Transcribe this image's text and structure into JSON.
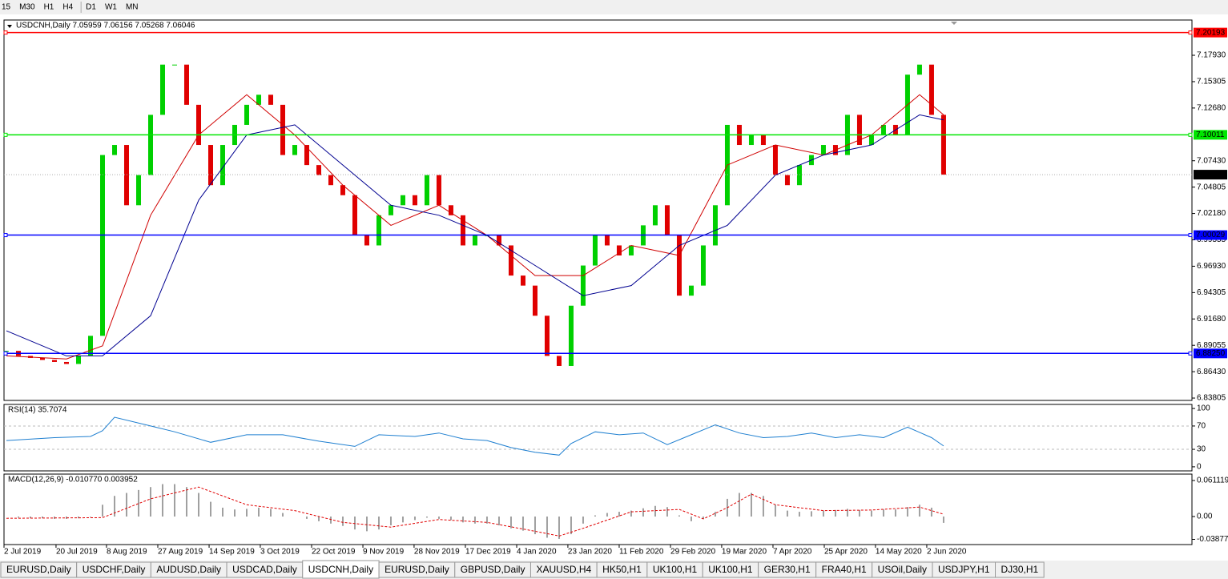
{
  "toolbar": {
    "timeframes": [
      "15",
      "M30",
      "H1",
      "H4",
      "D1",
      "W1",
      "MN"
    ]
  },
  "tabs": {
    "items": [
      "EURUSD,Daily",
      "USDCHF,Daily",
      "AUDUSD,Daily",
      "USDCAD,Daily",
      "USDCNH,Daily",
      "EURUSD,Daily",
      "GBPUSD,Daily",
      "XAUUSD,H4",
      "HK50,H1",
      "UK100,H1",
      "UK100,H1",
      "GER30,H1",
      "FRA40,H1",
      "USOil,Daily",
      "USDJPY,H1",
      "DJ30,H1"
    ],
    "active": 4
  },
  "chart_data": [
    {
      "type": "candlestick",
      "title": "USDCNH,Daily  7.05959 7.06156 7.05268 7.06046",
      "xlim": [
        -0.2,
        98.67
      ],
      "ylim": [
        6.8357,
        7.2144
      ],
      "xticks": [
        {
          "value": -0.2,
          "label": "2 Jul 2019"
        },
        {
          "value": 4.13,
          "label": "20 Jul 2019"
        },
        {
          "value": 8.33,
          "label": "8 Aug 2019"
        },
        {
          "value": 12.6,
          "label": "27 Aug 2019"
        },
        {
          "value": 16.87,
          "label": "14 Sep 2019"
        },
        {
          "value": 21.13,
          "label": "3 Oct 2019"
        },
        {
          "value": 25.4,
          "label": "22 Oct 2019"
        },
        {
          "value": 29.67,
          "label": "9 Nov 2019"
        },
        {
          "value": 33.93,
          "label": "28 Nov 2019"
        },
        {
          "value": 38.2,
          "label": "17 Dec 2019"
        },
        {
          "value": 42.47,
          "label": "4 Jan 2020"
        },
        {
          "value": 46.73,
          "label": "23 Jan 2020"
        },
        {
          "value": 51,
          "label": "11 Feb 2020"
        },
        {
          "value": 55.27,
          "label": "29 Feb 2020"
        },
        {
          "value": 59.53,
          "label": "19 Mar 2020"
        },
        {
          "value": 63.8,
          "label": "7 Apr 2020"
        },
        {
          "value": 68.07,
          "label": "25 Apr 2020"
        },
        {
          "value": 72.33,
          "label": "14 May 2020"
        },
        {
          "value": 76.6,
          "label": "2 Jun 2020"
        }
      ],
      "yticks": [
        6.83805,
        {
          "value": 6.8643,
          "label": "6.86430"
        },
        6.89055,
        {
          "value": 6.9168,
          "label": "6.91680"
        },
        6.94305,
        {
          "value": 6.9693,
          "label": "6.96930"
        },
        6.99555,
        {
          "value": 7.0218,
          "label": "7.02180"
        },
        7.04805,
        {
          "value": 7.0743,
          "label": "7.07430"
        },
        {
          "value": 7.1268,
          "label": "7.12680"
        },
        7.15305,
        {
          "value": 7.1793,
          "label": "7.17930"
        }
      ],
      "hlines": [
        {
          "value": 7.20193,
          "label": "7.20193",
          "color": "#ff0000"
        },
        {
          "value": 7.10011,
          "label": "7.10011",
          "color": "#00e600"
        },
        {
          "value": 7.00029,
          "label": "7.00029",
          "color": "#0000ff"
        },
        {
          "value": 6.8825,
          "label": "6.88250",
          "color": "#0000ff"
        }
      ],
      "current": {
        "value": 7.06046,
        "label": "7.06046",
        "color": "#000000"
      },
      "up_color": "#00d000",
      "down_color": "#e00000",
      "series": [
        {
          "name": "USDCNH",
          "values": [
            6.885,
            6.88,
            6.878,
            6.876,
            6.874,
            6.872,
            6.88,
            6.9,
            7.08,
            7.09,
            7.03,
            7.06,
            7.12,
            7.17,
            7.17,
            7.13,
            7.09,
            7.05,
            7.09,
            7.11,
            7.13,
            7.14,
            7.13,
            7.08,
            7.09,
            7.07,
            7.06,
            7.05,
            7.04,
            7.0,
            6.99,
            7.02,
            7.03,
            7.04,
            7.03,
            7.06,
            7.03,
            7.02,
            6.99,
            7.0,
            7.0,
            6.99,
            6.96,
            6.95,
            6.92,
            6.88,
            6.87,
            6.93,
            6.97,
            7.0,
            6.99,
            6.98,
            6.99,
            7.01,
            7.03,
            7.0,
            6.94,
            6.95,
            6.99,
            7.03,
            7.11,
            7.09,
            7.1,
            7.09,
            7.06,
            7.05,
            7.07,
            7.08,
            7.09,
            7.08,
            7.12,
            7.09,
            7.1,
            7.11,
            7.1,
            7.16,
            7.17,
            7.12,
            7.06046
          ]
        },
        {
          "name": "MA red",
          "color": "#d00000",
          "x": [
            0,
            5,
            8,
            12,
            16,
            20,
            24,
            28,
            32,
            36,
            40,
            44,
            48,
            52,
            56,
            60,
            64,
            68,
            72,
            76,
            78
          ],
          "values": [
            6.88,
            6.877,
            6.89,
            7.02,
            7.1,
            7.14,
            7.1,
            7.05,
            7.01,
            7.03,
            7.0,
            6.96,
            6.96,
            6.99,
            6.98,
            7.07,
            7.09,
            7.08,
            7.1,
            7.14,
            7.12
          ]
        },
        {
          "name": "MA blue",
          "color": "#000090",
          "x": [
            0,
            5,
            8,
            12,
            16,
            20,
            24,
            28,
            32,
            36,
            40,
            44,
            48,
            52,
            56,
            60,
            64,
            68,
            72,
            76,
            78
          ],
          "values": [
            6.905,
            6.88,
            6.88,
            6.92,
            7.035,
            7.1,
            7.11,
            7.07,
            7.03,
            7.02,
            7.0,
            6.97,
            6.94,
            6.95,
            6.99,
            7.01,
            7.06,
            7.08,
            7.09,
            7.12,
            7.115
          ]
        }
      ]
    },
    {
      "type": "line",
      "title": "RSI(14) 35.7074",
      "ylim": [
        -7,
        107
      ],
      "yticks": [
        100,
        70,
        30,
        0
      ],
      "levels": [
        70,
        30
      ],
      "series": [
        {
          "name": "RSI",
          "color": "#1e7fd0",
          "x": [
            0,
            4,
            7,
            8,
            9,
            12,
            14,
            17,
            20,
            23,
            26,
            29,
            31,
            34,
            36,
            38,
            40,
            42,
            44,
            46,
            47,
            49,
            51,
            53,
            55,
            57,
            59,
            61,
            63,
            65,
            67,
            69,
            71,
            73,
            75,
            77,
            78
          ],
          "values": [
            45,
            50,
            52,
            62,
            85,
            70,
            60,
            42,
            55,
            55,
            44,
            35,
            55,
            52,
            58,
            48,
            45,
            33,
            25,
            20,
            40,
            60,
            55,
            58,
            38,
            55,
            72,
            58,
            50,
            52,
            58,
            50,
            55,
            50,
            68,
            50,
            35.7074
          ]
        }
      ]
    },
    {
      "type": "bar",
      "title": "MACD(12,26,9) -0.010770 0.003952",
      "ylim": [
        -0.0476,
        0.072
      ],
      "yticks": [
        0.061119,
        {
          "value": 0,
          "label": "0.00"
        },
        -0.038777
      ],
      "color": "#a0a0a0",
      "values": [
        0,
        -0.002,
        -0.003,
        -0.003,
        -0.004,
        -0.004,
        -0.003,
        -0.001,
        0.02,
        0.035,
        0.04,
        0.045,
        0.05,
        0.055,
        0.055,
        0.05,
        0.04,
        0.025,
        0.015,
        0.012,
        0.013,
        0.015,
        0.013,
        0.006,
        0.0,
        -0.004,
        -0.008,
        -0.012,
        -0.016,
        -0.022,
        -0.025,
        -0.022,
        -0.015,
        -0.01,
        -0.006,
        -0.002,
        -0.004,
        -0.006,
        -0.01,
        -0.012,
        -0.012,
        -0.015,
        -0.02,
        -0.024,
        -0.03,
        -0.036,
        -0.038,
        -0.03,
        -0.012,
        0.002,
        0.006,
        0.008,
        0.01,
        0.014,
        0.018,
        0.016,
        0.002,
        -0.008,
        -0.004,
        0.008,
        0.03,
        0.04,
        0.04,
        0.035,
        0.02,
        0.01,
        0.008,
        0.009,
        0.01,
        0.011,
        0.013,
        0.011,
        0.01,
        0.012,
        0.012,
        0.016,
        0.02,
        0.015,
        -0.01077
      ],
      "signal": {
        "color": "#e00000",
        "x": [
          0,
          8,
          12,
          16,
          20,
          24,
          28,
          32,
          36,
          40,
          44,
          46,
          48,
          52,
          56,
          58,
          60,
          62,
          64,
          68,
          72,
          76,
          78
        ],
        "values": [
          -0.003,
          -0.002,
          0.03,
          0.05,
          0.02,
          0.01,
          -0.01,
          -0.018,
          -0.005,
          -0.01,
          -0.025,
          -0.033,
          -0.02,
          0.008,
          0.012,
          -0.004,
          0.015,
          0.038,
          0.02,
          0.01,
          0.011,
          0.016,
          0.003952
        ]
      }
    }
  ]
}
